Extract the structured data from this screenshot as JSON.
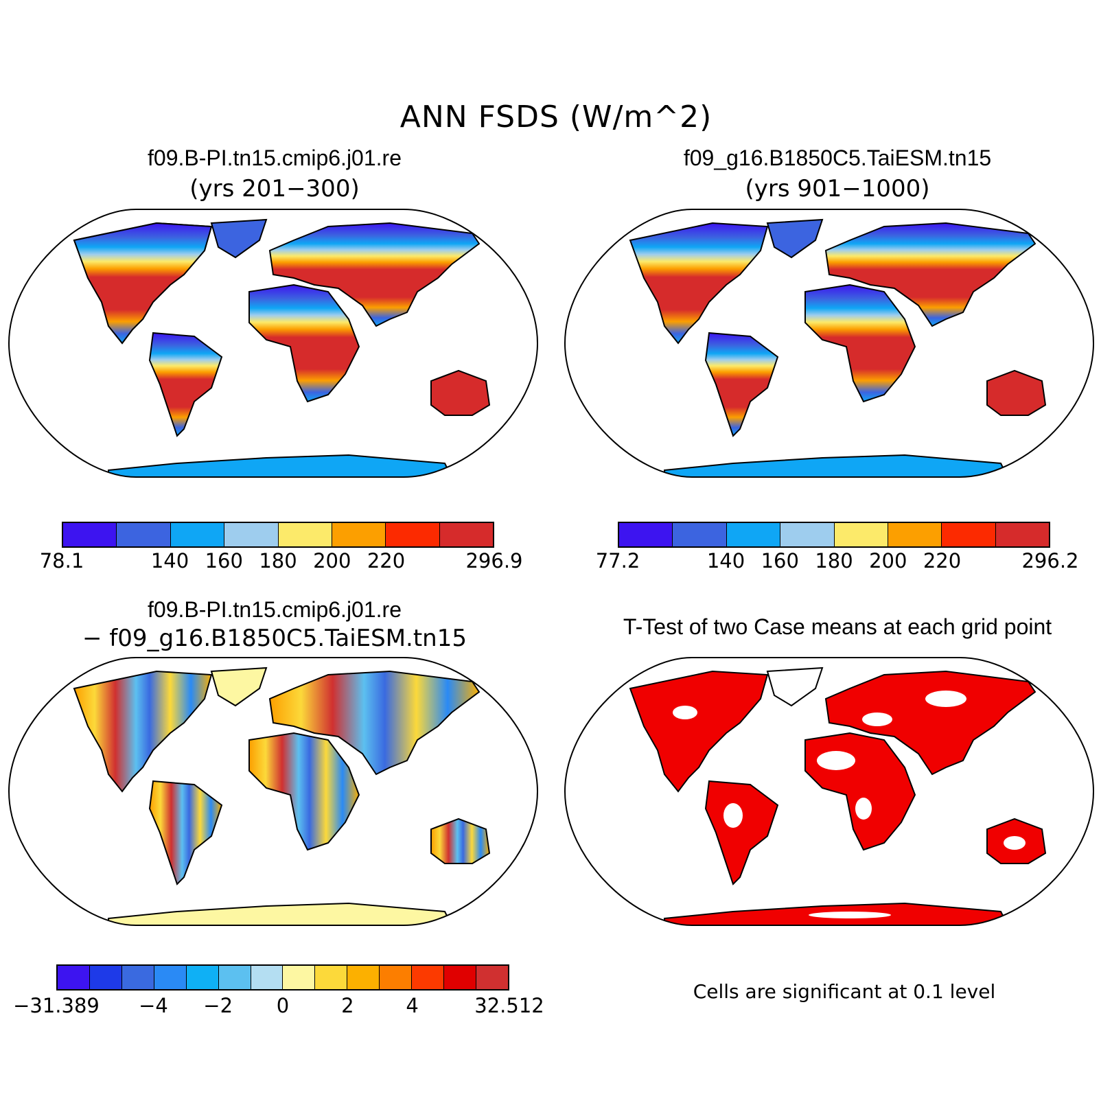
{
  "figure_title": "ANN FSDS (W/m^2)",
  "panels": {
    "top_left": {
      "title": "f09.B-PI.tn15.cmip6.j01.re",
      "subtitle": "(yrs 201−300)",
      "colorbar": {
        "colors": [
          "#3d14f0",
          "#3c64e0",
          "#0fa6f5",
          "#9ecdee",
          "#fcea6a",
          "#fc9f00",
          "#fc2a00",
          "#d62b2b"
        ],
        "tick_labels": [
          "78.1",
          "140",
          "160",
          "180",
          "200",
          "220",
          "296.9"
        ]
      }
    },
    "top_right": {
      "title": "f09_g16.B1850C5.TaiESM.tn15",
      "subtitle": "(yrs 901−1000)",
      "colorbar": {
        "colors": [
          "#3d14f0",
          "#3c64e0",
          "#0fa6f5",
          "#9ecdee",
          "#fcea6a",
          "#fc9f00",
          "#fc2a00",
          "#d62b2b"
        ],
        "tick_labels": [
          "77.2",
          "140",
          "160",
          "180",
          "200",
          "220",
          "296.2"
        ]
      }
    },
    "bottom_left": {
      "title": "f09.B-PI.tn15.cmip6.j01.re",
      "subtitle": "− f09_g16.B1850C5.TaiESM.tn15",
      "colorbar": {
        "colors": [
          "#3d14f0",
          "#1e3ae8",
          "#3a6ae0",
          "#2a8af5",
          "#0fb0f5",
          "#5cc0f0",
          "#b4def2",
          "#fdf7a2",
          "#fcd93a",
          "#fcb000",
          "#fc7e00",
          "#fc3a00",
          "#e00000",
          "#d03030"
        ],
        "tick_labels": [
          "−31.389",
          "−4",
          "−2",
          "0",
          "2",
          "4",
          "32.512"
        ]
      }
    },
    "bottom_right": {
      "title": "T-Test of two Case means at each grid point",
      "note": "Cells are significant at 0.1 level",
      "significant_color": "#f00000"
    }
  }
}
